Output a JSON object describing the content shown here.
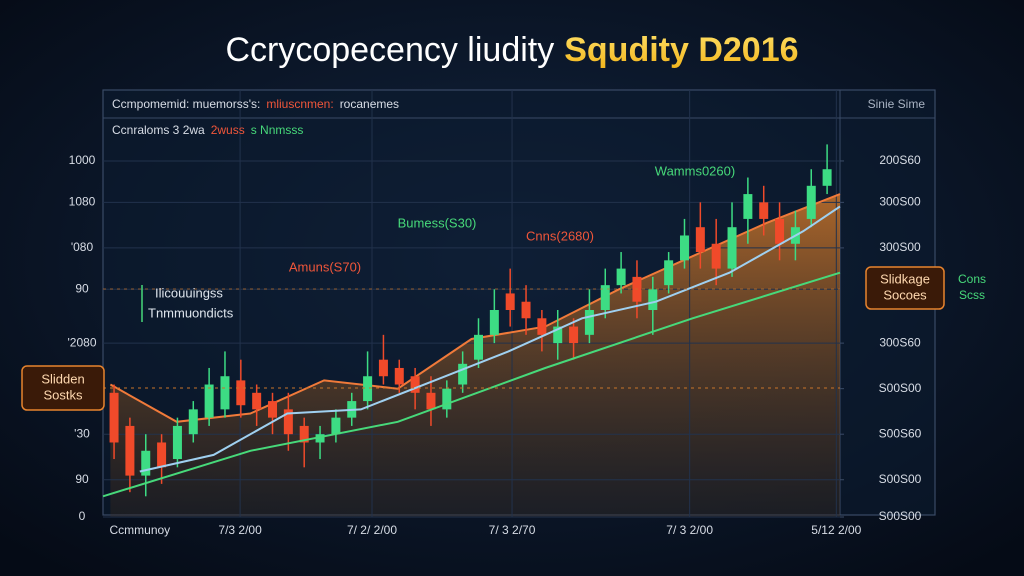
{
  "chart_data": {
    "type": "candlestick",
    "title": "Ccrycopecency liudity",
    "title_highlight": "Squdity D2016",
    "header_row1": [
      {
        "text": "Ccmpomemid: muemorss's:",
        "color": "#d8dde6"
      },
      {
        "text": "mliuscnmen:",
        "color": "#f0563a"
      },
      {
        "text": "rocanemes",
        "color": "#d8dde6"
      }
    ],
    "header_right": "Sinie Sime",
    "header_row2": [
      {
        "text": "Ccnraloms 3 2wa",
        "color": "#d8dde6"
      },
      {
        "text": "2wuss",
        "color": "#f0563a"
      },
      {
        "text": "s Nnmsss",
        "color": "#47d97a"
      }
    ],
    "inner_labels": [
      "Ilicouuingss",
      "Tnmmuondicts"
    ],
    "left_box": [
      "Slidden",
      "Sostks"
    ],
    "right_box": [
      "Slidkage",
      "Socoes"
    ],
    "right_box_side": [
      "Cons",
      "Scss"
    ],
    "annotations": [
      {
        "text": "Amuns(S70)",
        "color": "#f0563a"
      },
      {
        "text": "Bumess(S30)",
        "color": "#47d97a"
      },
      {
        "text": "Cnns(2680)",
        "color": "#f0563a"
      },
      {
        "text": "Wamms0260)",
        "color": "#47d97a"
      }
    ],
    "xlim": [
      0,
      100
    ],
    "xticks": [
      {
        "value": 5,
        "label": "Ccmmunoy"
      },
      {
        "value": 18.6,
        "label": "7/3 2/00"
      },
      {
        "value": 36.5,
        "label": "7/ 2/ 2/00"
      },
      {
        "value": 55.5,
        "label": "7/ 3 2/70"
      },
      {
        "value": 79.6,
        "label": "7/ 3 2/00"
      },
      {
        "value": 99.5,
        "label": "5/12 2/00"
      }
    ],
    "ylim": [
      0,
      100
    ],
    "yticks": [
      {
        "value": 86,
        "label": "1000"
      },
      {
        "value": 76,
        "label": "1080"
      },
      {
        "value": 65,
        "label": "'080"
      },
      {
        "value": 55,
        "label": "90"
      },
      {
        "value": 42,
        "label": "'2080"
      },
      {
        "value": 20,
        "label": "'30"
      },
      {
        "value": 9,
        "label": "90"
      },
      0
    ],
    "y2lim": [
      0,
      100
    ],
    "y2ticks": [
      {
        "value": 86,
        "label": "200S60"
      },
      {
        "value": 76,
        "label": "300S00"
      },
      {
        "value": 65,
        "label": "300S00"
      },
      {
        "value": 42,
        "label": "300S60"
      },
      {
        "value": 31,
        "label": "S00S00"
      },
      {
        "value": 20,
        "label": "S00S60"
      },
      {
        "value": 9,
        "label": "S00S00"
      },
      {
        "value": 0,
        "label": "S00S00"
      }
    ],
    "grid": true,
    "up_color": "#3ddc84",
    "down_color": "#f04a2a",
    "candles": {
      "x": [
        1.5,
        3.65,
        5.8,
        7.95,
        10.1,
        12.25,
        14.4,
        16.55,
        18.7,
        20.85,
        23,
        25.15,
        27.3,
        29.45,
        31.6,
        33.75,
        35.9,
        38.05,
        40.2,
        42.35,
        44.5,
        46.65,
        48.8,
        50.95,
        53.1,
        55.25,
        57.4,
        59.55,
        61.7,
        63.85,
        66,
        68.15,
        70.3,
        72.45,
        74.6,
        76.75,
        78.9,
        81.05,
        83.2,
        85.35,
        87.5,
        89.65,
        91.8,
        93.95,
        96.1,
        98.25
      ],
      "open": [
        30,
        22,
        10,
        18,
        14,
        20,
        24,
        26,
        33,
        30,
        28,
        26,
        22,
        18,
        20,
        24,
        28,
        38,
        36,
        34,
        30,
        26,
        32,
        38,
        44,
        54,
        52,
        48,
        42,
        46,
        44,
        50,
        56,
        58,
        50,
        56,
        62,
        70,
        66,
        60,
        72,
        76,
        72,
        66,
        72,
        80
      ],
      "high": [
        32,
        24,
        20,
        20,
        24,
        28,
        36,
        40,
        38,
        32,
        30,
        30,
        24,
        22,
        26,
        30,
        40,
        44,
        38,
        36,
        34,
        33,
        40,
        48,
        55,
        60,
        56,
        50,
        50,
        48,
        55,
        60,
        64,
        62,
        58,
        64,
        72,
        76,
        72,
        76,
        82,
        80,
        76,
        74,
        84,
        90
      ],
      "low": [
        14,
        6,
        5,
        8,
        12,
        18,
        22,
        24,
        24,
        22,
        20,
        16,
        12,
        14,
        18,
        22,
        26,
        32,
        30,
        26,
        22,
        24,
        30,
        36,
        42,
        46,
        44,
        40,
        38,
        38,
        42,
        48,
        54,
        48,
        44,
        54,
        60,
        60,
        56,
        58,
        66,
        68,
        62,
        62,
        70,
        78
      ],
      "close": [
        18,
        10,
        16,
        12,
        22,
        26,
        32,
        34,
        27,
        26,
        24,
        20,
        18,
        20,
        24,
        28,
        34,
        34,
        32,
        30,
        26,
        31,
        37,
        44,
        50,
        50,
        48,
        44,
        46,
        42,
        50,
        56,
        60,
        52,
        55,
        62,
        68,
        64,
        60,
        70,
        78,
        72,
        66,
        70,
        80,
        84
      ]
    },
    "lines": [
      {
        "color": "#47d97a",
        "x": [
          0,
          20,
          40,
          60,
          80,
          100
        ],
        "values": [
          5,
          16,
          23,
          36,
          48,
          59
        ]
      },
      {
        "color": "#9fd0f0",
        "x": [
          5,
          15,
          25,
          35,
          45,
          55,
          65,
          75,
          85,
          95,
          100
        ],
        "values": [
          11,
          15,
          25,
          26,
          33,
          40,
          48,
          52,
          59,
          69,
          75
        ]
      },
      {
        "color": "#f07a3a",
        "x": [
          1,
          10,
          20,
          30,
          40,
          50,
          60,
          70,
          80,
          90,
          100
        ],
        "values": [
          32,
          23,
          25,
          33,
          31,
          43,
          46,
          55,
          63,
          71,
          78
        ],
        "area": true
      }
    ]
  }
}
